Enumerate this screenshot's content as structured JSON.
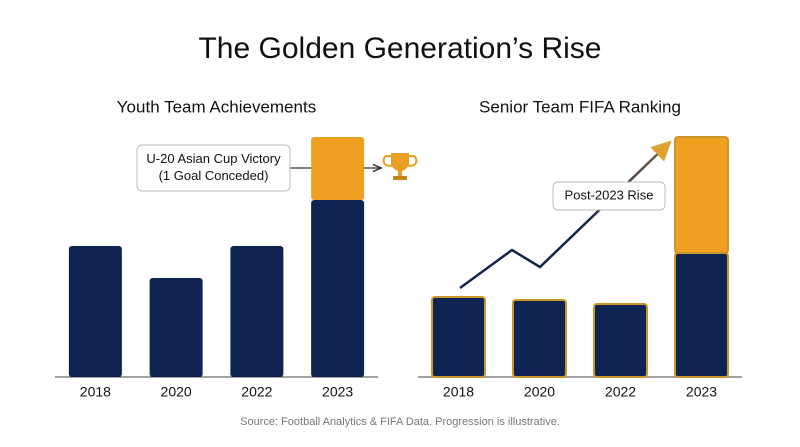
{
  "title": "The Golden Generation’s Rise",
  "chart_data": [
    {
      "type": "bar",
      "stacked": true,
      "title": "Youth Team Achievements",
      "categories": [
        "2018",
        "2020",
        "2022",
        "2023"
      ],
      "series": [
        {
          "color": "#0f2350",
          "values": [
            131,
            99,
            131,
            177
          ]
        },
        {
          "color": "#f0a020",
          "values": [
            null,
            null,
            null,
            63
          ]
        }
      ],
      "annotation": [
        "U-20 Asian Cup Victory",
        "(1 Goal Conceded)"
      ]
    },
    {
      "type": "bar",
      "stacked": true,
      "title": "Senior Team FIFA Ranking",
      "outline": "#c8962a",
      "categories": [
        "2018",
        "2020",
        "2022",
        "2023"
      ],
      "series": [
        {
          "color": "#0f2350",
          "values": [
            80,
            77,
            73,
            124
          ]
        },
        {
          "color": "#f0a020",
          "values": [
            null,
            null,
            null,
            116
          ]
        }
      ],
      "annotation": [
        "Post-2023 Rise"
      ]
    }
  ],
  "source": "Source: Football Analytics & FIFA Data. Progression is illustrative."
}
